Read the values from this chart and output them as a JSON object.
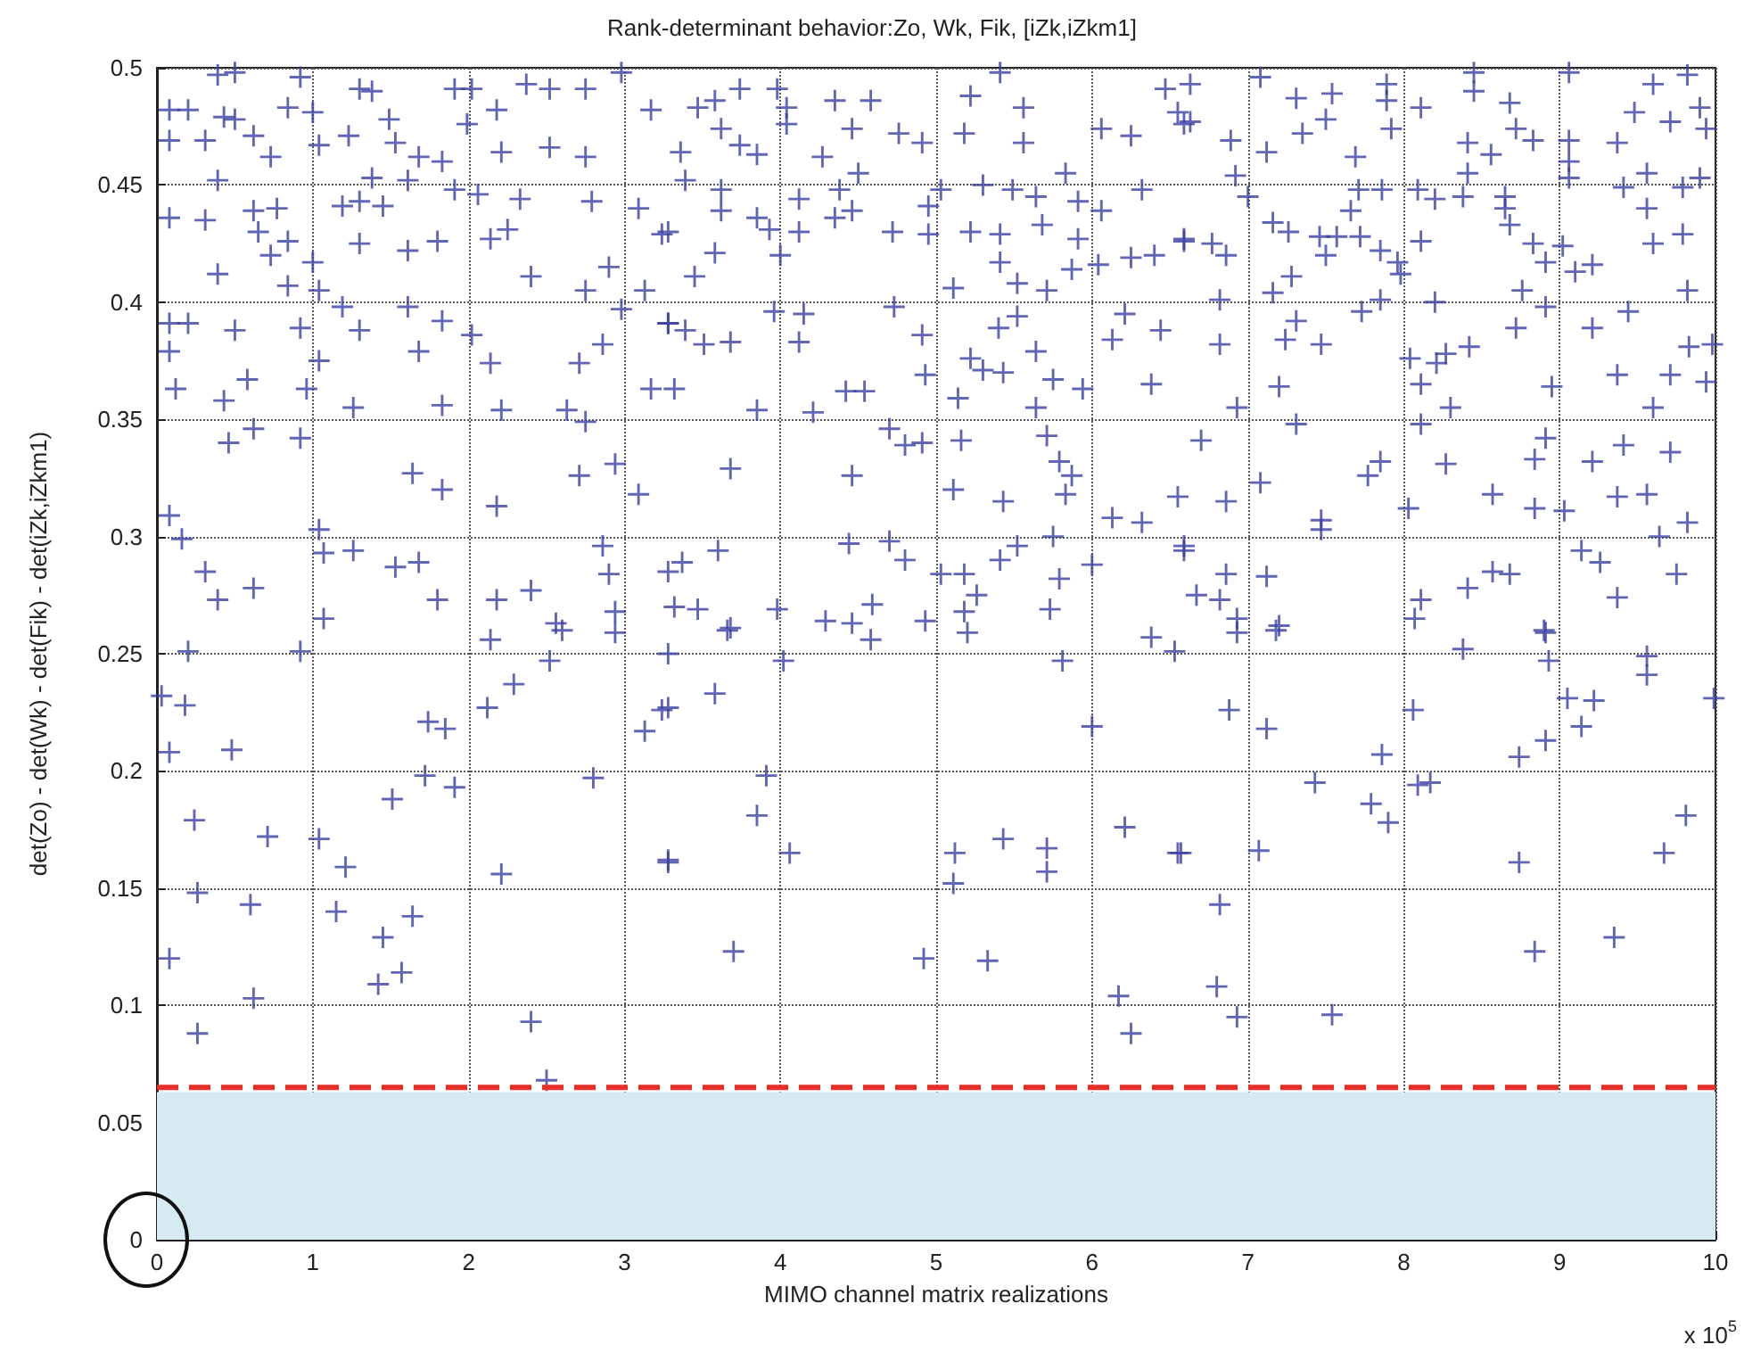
{
  "chart_data": {
    "type": "scatter",
    "title": "Rank-determinant behavior:Zo, Wk, Fik, [iZk,iZkm1]",
    "xlabel": "MIMO channel matrix realizations",
    "ylabel": "det(Zo) - det(Wk) - det(Fik) - det(iZk,iZkm1)",
    "annotations": [
      "x 10$^{5}$"
    ],
    "xlim": [
      0,
      10
    ],
    "xticks": [
      0,
      1,
      2,
      3,
      4,
      5,
      6,
      7,
      8,
      9,
      10
    ],
    "ylim": [
      0,
      0.5
    ],
    "yticks": [
      0,
      0.05,
      0.1,
      0.15,
      0.2,
      0.25,
      0.3,
      0.35,
      0.4,
      0.45,
      0.5
    ],
    "grid": true,
    "marker": "cross",
    "color": "#3a3fa3",
    "ref_lines": [
      {
        "axis": "y",
        "value": 0.065,
        "color": "#e8302a",
        "line_style": "dashed"
      }
    ],
    "bands": [
      {
        "axis": "y",
        "from": 0,
        "to": 0.063,
        "color": "#d6ebf1"
      }
    ],
    "x": [
      0.39,
      0.5,
      0.92,
      1.3,
      1.38,
      1.91,
      2.02,
      2.37,
      2.52,
      2.75,
      2.98,
      0.08,
      0.2,
      0.43,
      0.5,
      0.84,
      1.0,
      1.49,
      2.18,
      3.17,
      0.08,
      0.31,
      0.62,
      1.04,
      1.23,
      1.53,
      1.99,
      2.21,
      2.52,
      2.75,
      0.73,
      1.68,
      1.83,
      0.39,
      1.38,
      1.61,
      1.91,
      2.06,
      2.33,
      2.79,
      3.09,
      0.08,
      0.31,
      0.62,
      0.77,
      1.19,
      1.3,
      1.45,
      0.65,
      0.84,
      1.3,
      1.61,
      1.8,
      2.14,
      2.25,
      3.24,
      0.73,
      1.0,
      2.4,
      2.9,
      0.39,
      0.84,
      1.04,
      1.19,
      1.61,
      1.83,
      2.75,
      3.13,
      3.28,
      0.08,
      0.2,
      0.5,
      0.92,
      1.3,
      2.02,
      2.98,
      0.08,
      1.04,
      1.68,
      2.14,
      2.71,
      2.86,
      0.12,
      0.43,
      0.58,
      0.96,
      1.26,
      1.83,
      2.21,
      2.63,
      2.75,
      3.17,
      0.46,
      0.62,
      0.92,
      1.64,
      1.83,
      2.18,
      2.71,
      2.94,
      3.09,
      0.08,
      0.16,
      1.04,
      1.07,
      1.26,
      1.53,
      1.68,
      0.31,
      0.62,
      0.39,
      1.8,
      2.18,
      2.4,
      2.86,
      2.9,
      3.28,
      1.07,
      2.56,
      2.94,
      0.2,
      0.92,
      2.14,
      2.6,
      2.94,
      3.28,
      0.03,
      0.18,
      2.52,
      2.29,
      2.12,
      3.24,
      3.13,
      0.08,
      0.48,
      1.74,
      1.85,
      1.72,
      1.91,
      2.8,
      0.24,
      0.71,
      1.04,
      1.51,
      1.21,
      2.21,
      3.28,
      0.26,
      0.6,
      1.15,
      1.64,
      1.45,
      0.08,
      1.57,
      1.42,
      0.62,
      0.26,
      2.4,
      2.5,
      3.74,
      3.98,
      4.35,
      4.58,
      3.47,
      3.58,
      4.04,
      4.04,
      4.46,
      4.76,
      4.91,
      3.62,
      3.74,
      3.85,
      3.36,
      4.27,
      4.5,
      5.22,
      5.41,
      5.56,
      5.18,
      5.56,
      3.39,
      3.62,
      4.12,
      4.38,
      5.03,
      5.3,
      5.49,
      5.64,
      5.83,
      3.62,
      3.85,
      4.35,
      4.46,
      4.95,
      5.91,
      6.06,
      3.28,
      3.93,
      4.12,
      4.72,
      4.95,
      5.22,
      5.41,
      5.68,
      5.91,
      6.47,
      6.55,
      6.25,
      6.59,
      6.06,
      6.32,
      6.59,
      3.58,
      4.0,
      6.25,
      6.4,
      3.45,
      5.11,
      5.41,
      5.52,
      5.71,
      5.87,
      6.04,
      3.96,
      4.15,
      4.73,
      5.4,
      5.52,
      6.21,
      6.44,
      3.28,
      3.39,
      3.51,
      3.68,
      4.12,
      4.91,
      6.13,
      5.22,
      5.3,
      5.43,
      5.64,
      5.75,
      5.94,
      6.38,
      4.93,
      3.32,
      3.85,
      4.21,
      4.42,
      4.54,
      5.14,
      5.64,
      4.7,
      4.8,
      4.91,
      5.16,
      5.71,
      5.79,
      3.68,
      4.46,
      5.11,
      5.43,
      5.87,
      5.83,
      6.13,
      6.32,
      6.55,
      3.37,
      3.6,
      4.44,
      4.7,
      4.8,
      5.03,
      5.18,
      5.52,
      5.41,
      5.75,
      6.0,
      6.59,
      3.32,
      3.47,
      3.68,
      3.98,
      4.29,
      4.46,
      4.59,
      4.93,
      5.18,
      5.26,
      5.79,
      5.73,
      3.66,
      4.02,
      4.58,
      5.2,
      5.81,
      6.38,
      6.53,
      3.28,
      3.58,
      6.0,
      3.91,
      3.85,
      3.28,
      4.06,
      5.12,
      5.43,
      5.71,
      5.71,
      5.11,
      6.21,
      6.55,
      3.7,
      4.92,
      5.33,
      6.17,
      6.25,
      6.63,
      7.08,
      7.31,
      7.54,
      7.89,
      7.89,
      8.11,
      8.45,
      8.45,
      8.68,
      9.06,
      9.6,
      9.82,
      9.9,
      6.63,
      6.89,
      7.12,
      7.35,
      7.5,
      7.92,
      8.41,
      8.56,
      8.72,
      8.83,
      9.06,
      9.37,
      9.48,
      9.71,
      9.94,
      7.69,
      9.06,
      6.92,
      7.0,
      7.71,
      7.86,
      8.09,
      8.2,
      8.38,
      8.65,
      8.41,
      9.06,
      9.41,
      9.56,
      9.79,
      9.9,
      9.56,
      7.66,
      6.59,
      6.77,
      7.16,
      7.26,
      7.46,
      7.57,
      7.72,
      7.85,
      7.96,
      8.11,
      8.65,
      8.68,
      8.83,
      9.02,
      9.21,
      9.6,
      9.79,
      6.86,
      7.5,
      7.98,
      8.91,
      9.1,
      7.28,
      7.16,
      6.82,
      7.31,
      7.73,
      7.85,
      8.2,
      8.76,
      8.91,
      8.72,
      9.21,
      9.44,
      9.82,
      7.24,
      7.47,
      6.82,
      8.04,
      8.21,
      8.27,
      8.42,
      9.83,
      9.98,
      8.11,
      8.3,
      7.2,
      8.95,
      9.37,
      9.71,
      9.94,
      6.93,
      7.31,
      8.11,
      8.91,
      9.6,
      6.7,
      9.41,
      9.71,
      7.85,
      7.77,
      8.27,
      8.84,
      9.21,
      7.08,
      6.86,
      8.03,
      8.57,
      8.84,
      9.03,
      9.37,
      9.56,
      7.47,
      7.47,
      6.59,
      9.14,
      9.64,
      9.82,
      6.86,
      7.12,
      8.41,
      8.57,
      8.68,
      9.26,
      9.75,
      6.67,
      6.82,
      8.11,
      9.37,
      6.93,
      7.2,
      8.07,
      8.9,
      6.93,
      7.18,
      8.38,
      8.91,
      8.93,
      9.56,
      9.56,
      6.88,
      7.12,
      8.06,
      9.05,
      9.22,
      9.14,
      9.99,
      7.86,
      7.43,
      8.74,
      8.91,
      8.09,
      8.17,
      7.79,
      7.9,
      9.81,
      7.07,
      6.57,
      8.74,
      9.67,
      6.82,
      9.35,
      8.84,
      6.8,
      6.93,
      7.54
    ],
    "values": [
      0.497,
      0.498,
      0.496,
      0.491,
      0.49,
      0.491,
      0.491,
      0.493,
      0.491,
      0.491,
      0.498,
      0.482,
      0.482,
      0.479,
      0.478,
      0.483,
      0.481,
      0.478,
      0.482,
      0.482,
      0.469,
      0.469,
      0.471,
      0.467,
      0.471,
      0.468,
      0.476,
      0.464,
      0.466,
      0.462,
      0.462,
      0.462,
      0.46,
      0.452,
      0.453,
      0.452,
      0.448,
      0.446,
      0.444,
      0.443,
      0.44,
      0.436,
      0.435,
      0.439,
      0.44,
      0.441,
      0.443,
      0.441,
      0.43,
      0.426,
      0.425,
      0.422,
      0.426,
      0.427,
      0.431,
      0.429,
      0.42,
      0.417,
      0.411,
      0.415,
      0.412,
      0.407,
      0.405,
      0.398,
      0.398,
      0.392,
      0.405,
      0.405,
      0.391,
      0.391,
      0.391,
      0.388,
      0.389,
      0.388,
      0.386,
      0.397,
      0.379,
      0.375,
      0.379,
      0.374,
      0.374,
      0.382,
      0.363,
      0.358,
      0.367,
      0.363,
      0.355,
      0.356,
      0.354,
      0.354,
      0.349,
      0.363,
      0.34,
      0.346,
      0.342,
      0.327,
      0.32,
      0.313,
      0.326,
      0.331,
      0.318,
      0.309,
      0.299,
      0.303,
      0.293,
      0.294,
      0.287,
      0.289,
      0.285,
      0.278,
      0.273,
      0.273,
      0.273,
      0.277,
      0.296,
      0.284,
      0.285,
      0.265,
      0.263,
      0.268,
      0.251,
      0.251,
      0.256,
      0.26,
      0.259,
      0.25,
      0.232,
      0.228,
      0.247,
      0.237,
      0.227,
      0.226,
      0.217,
      0.208,
      0.209,
      0.221,
      0.218,
      0.198,
      0.193,
      0.197,
      0.179,
      0.172,
      0.171,
      0.188,
      0.159,
      0.156,
      0.161,
      0.148,
      0.143,
      0.14,
      0.138,
      0.129,
      0.12,
      0.114,
      0.109,
      0.103,
      0.088,
      0.093,
      0.068,
      0.491,
      0.491,
      0.486,
      0.486,
      0.483,
      0.486,
      0.483,
      0.476,
      0.474,
      0.472,
      0.468,
      0.474,
      0.467,
      0.463,
      0.464,
      0.462,
      0.455,
      0.488,
      0.498,
      0.483,
      0.472,
      0.468,
      0.452,
      0.448,
      0.444,
      0.448,
      0.448,
      0.45,
      0.448,
      0.445,
      0.455,
      0.439,
      0.436,
      0.436,
      0.439,
      0.441,
      0.443,
      0.439,
      0.43,
      0.431,
      0.43,
      0.43,
      0.429,
      0.43,
      0.429,
      0.433,
      0.427,
      0.491,
      0.481,
      0.471,
      0.476,
      0.474,
      0.448,
      0.427,
      0.421,
      0.42,
      0.419,
      0.42,
      0.411,
      0.406,
      0.417,
      0.408,
      0.405,
      0.414,
      0.416,
      0.396,
      0.395,
      0.398,
      0.389,
      0.394,
      0.395,
      0.388,
      0.391,
      0.388,
      0.382,
      0.383,
      0.383,
      0.386,
      0.384,
      0.376,
      0.371,
      0.37,
      0.379,
      0.367,
      0.363,
      0.365,
      0.369,
      0.363,
      0.354,
      0.353,
      0.362,
      0.362,
      0.359,
      0.355,
      0.346,
      0.339,
      0.34,
      0.341,
      0.343,
      0.332,
      0.329,
      0.326,
      0.32,
      0.315,
      0.326,
      0.318,
      0.308,
      0.306,
      0.317,
      0.289,
      0.294,
      0.297,
      0.298,
      0.29,
      0.284,
      0.284,
      0.296,
      0.29,
      0.3,
      0.288,
      0.296,
      0.27,
      0.269,
      0.261,
      0.269,
      0.264,
      0.263,
      0.271,
      0.264,
      0.268,
      0.275,
      0.282,
      0.269,
      0.26,
      0.247,
      0.256,
      0.259,
      0.247,
      0.257,
      0.251,
      0.227,
      0.233,
      0.219,
      0.198,
      0.181,
      0.162,
      0.165,
      0.165,
      0.171,
      0.167,
      0.157,
      0.152,
      0.176,
      0.165,
      0.123,
      0.12,
      0.119,
      0.104,
      0.088,
      0.493,
      0.496,
      0.487,
      0.489,
      0.493,
      0.486,
      0.483,
      0.498,
      0.49,
      0.485,
      0.498,
      0.493,
      0.497,
      0.483,
      0.477,
      0.469,
      0.464,
      0.472,
      0.478,
      0.474,
      0.468,
      0.463,
      0.474,
      0.469,
      0.469,
      0.468,
      0.481,
      0.477,
      0.474,
      0.462,
      0.46,
      0.454,
      0.445,
      0.448,
      0.448,
      0.448,
      0.444,
      0.445,
      0.445,
      0.455,
      0.453,
      0.449,
      0.455,
      0.449,
      0.453,
      0.44,
      0.439,
      0.426,
      0.425,
      0.434,
      0.43,
      0.428,
      0.428,
      0.428,
      0.422,
      0.417,
      0.426,
      0.44,
      0.433,
      0.425,
      0.424,
      0.416,
      0.425,
      0.429,
      0.42,
      0.42,
      0.412,
      0.417,
      0.413,
      0.411,
      0.404,
      0.401,
      0.392,
      0.396,
      0.401,
      0.4,
      0.405,
      0.398,
      0.389,
      0.389,
      0.396,
      0.405,
      0.384,
      0.382,
      0.382,
      0.376,
      0.374,
      0.378,
      0.381,
      0.381,
      0.382,
      0.365,
      0.355,
      0.364,
      0.364,
      0.369,
      0.369,
      0.366,
      0.355,
      0.348,
      0.348,
      0.342,
      0.355,
      0.341,
      0.339,
      0.336,
      0.332,
      0.326,
      0.331,
      0.333,
      0.332,
      0.323,
      0.315,
      0.312,
      0.318,
      0.312,
      0.311,
      0.317,
      0.318,
      0.307,
      0.303,
      0.294,
      0.294,
      0.3,
      0.306,
      0.284,
      0.283,
      0.278,
      0.285,
      0.284,
      0.289,
      0.284,
      0.275,
      0.273,
      0.273,
      0.274,
      0.265,
      0.262,
      0.265,
      0.26,
      0.259,
      0.26,
      0.252,
      0.259,
      0.247,
      0.249,
      0.241,
      0.226,
      0.218,
      0.226,
      0.231,
      0.23,
      0.219,
      0.231,
      0.207,
      0.195,
      0.206,
      0.213,
      0.194,
      0.195,
      0.186,
      0.178,
      0.181,
      0.166,
      0.165,
      0.161,
      0.165,
      0.143,
      0.129,
      0.123,
      0.108,
      0.095,
      0.096
    ]
  }
}
